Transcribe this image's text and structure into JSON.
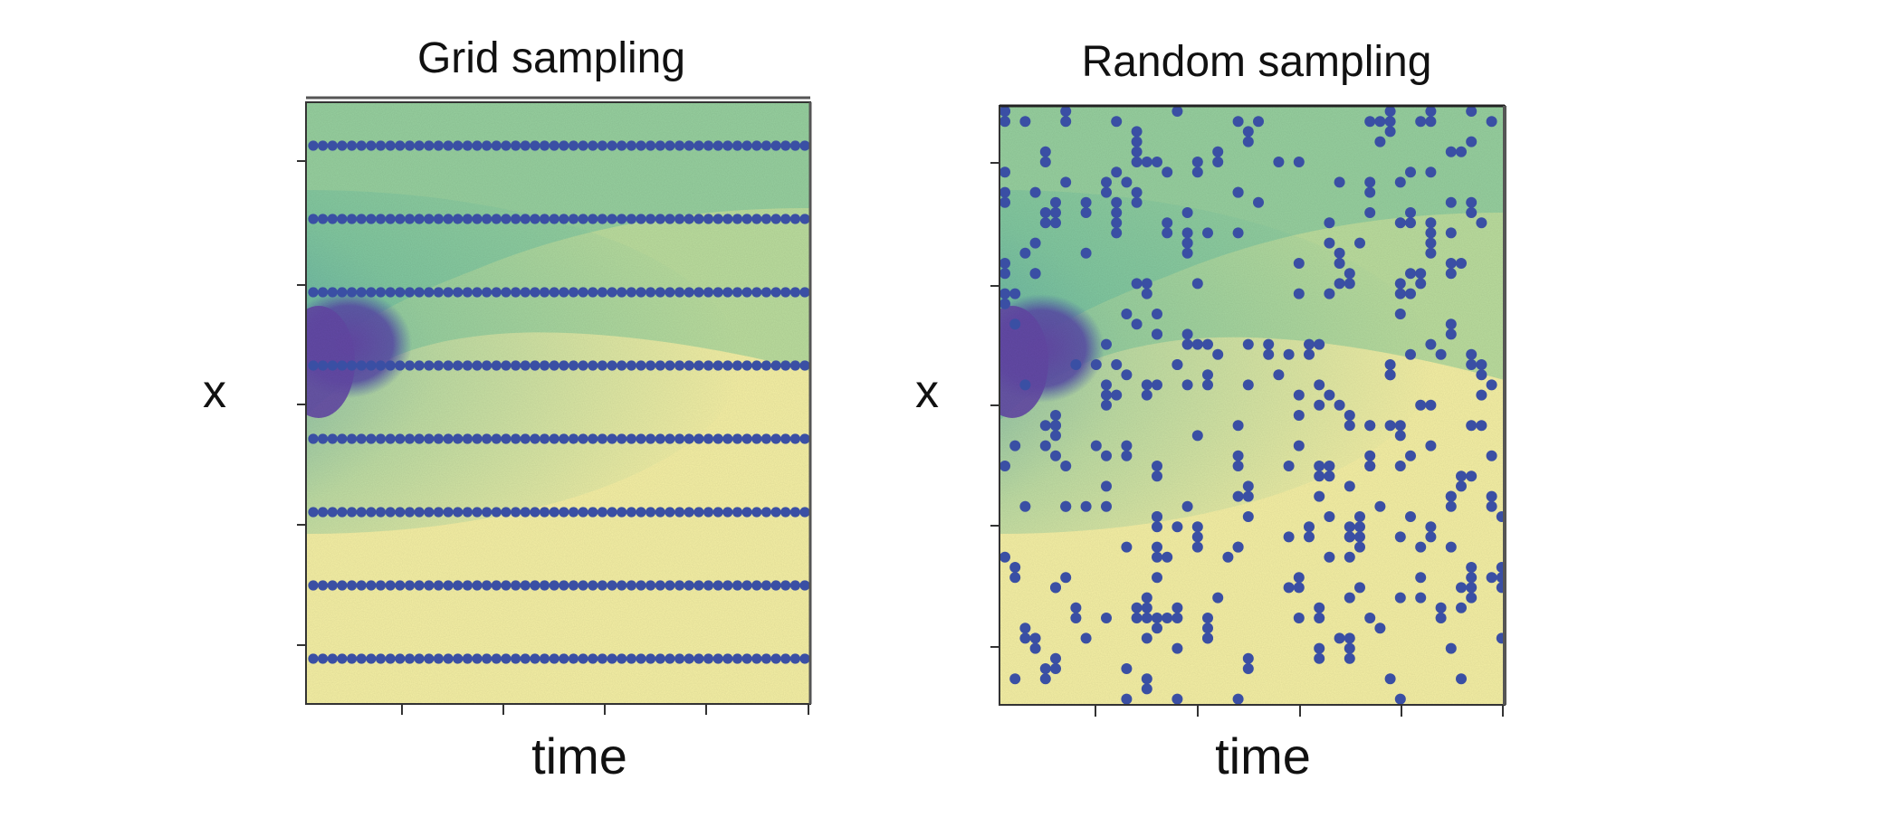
{
  "chart_data": [
    {
      "type": "heatmap",
      "title": "Grid sampling",
      "xlabel": "time",
      "ylabel": "x",
      "sampling": "grid",
      "grid_rows": 8,
      "points_per_row": 52,
      "colors": {
        "low": "#f5f0a4",
        "mid": "#5ab8a1",
        "high": "#6449a6",
        "points": "#3a4fa4"
      }
    },
    {
      "type": "heatmap",
      "title": "Random sampling",
      "xlabel": "time",
      "ylabel": "x",
      "sampling": "random",
      "random_points": 300,
      "colors": {
        "low": "#f5f0a4",
        "mid": "#5ab8a1",
        "high": "#6449a6",
        "points": "#3a4fa4"
      }
    }
  ]
}
